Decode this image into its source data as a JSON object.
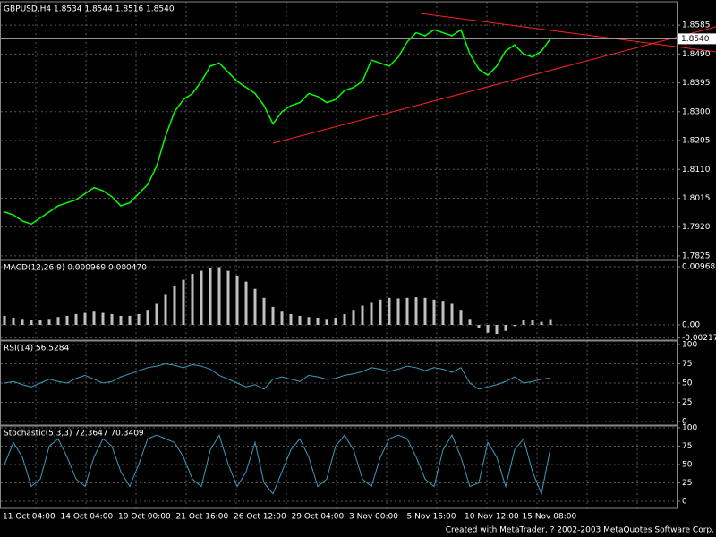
{
  "chart_data": [
    {
      "type": "line",
      "title": "GBPUSD,H4  1.8534 1.8544 1.8516 1.8540",
      "color": "#00ff00",
      "ylim": [
        1.7813,
        1.8662
      ],
      "yticks": [
        1.8585,
        {
          "value": 1.849,
          "label": "1.8490"
        },
        1.8395,
        {
          "value": 1.83,
          "label": "1.8300"
        },
        1.8205,
        {
          "value": 1.811,
          "label": "1.8110"
        },
        1.8015,
        {
          "value": 1.792,
          "label": "1.7920"
        },
        1.7825
      ],
      "last_price": {
        "value": 1.854,
        "label": "1.8540"
      },
      "values": [
        1.797,
        1.796,
        1.794,
        1.793,
        1.795,
        1.797,
        1.799,
        1.8,
        1.801,
        1.803,
        1.805,
        1.804,
        1.802,
        1.799,
        1.8,
        1.803,
        1.806,
        1.812,
        1.822,
        1.83,
        1.834,
        1.836,
        1.84,
        1.845,
        1.846,
        1.843,
        1.84,
        1.838,
        1.836,
        1.832,
        1.826,
        1.83,
        1.832,
        1.833,
        1.836,
        1.835,
        1.833,
        1.834,
        1.837,
        1.838,
        1.84,
        1.847,
        1.846,
        1.845,
        1.848,
        1.853,
        1.856,
        1.855,
        1.857,
        1.856,
        1.855,
        1.857,
        1.849,
        1.844,
        1.842,
        1.845,
        1.85,
        1.852,
        1.849,
        1.848,
        1.85,
        1.854
      ]
    },
    {
      "type": "bar",
      "title": "MACD(12,26,9)  0.000969  0.000470",
      "color": "#c0c0c0",
      "ylim": [
        -0.00253,
        0.01072
      ],
      "yticks": [
        0.00968,
        {
          "value": 0,
          "label": "0.00"
        },
        -0.00217
      ],
      "values": [
        0.0015,
        0.0012,
        0.001,
        0.0008,
        0.0008,
        0.001,
        0.0013,
        0.0015,
        0.0018,
        0.002,
        0.0022,
        0.002,
        0.0018,
        0.0015,
        0.0015,
        0.0018,
        0.0025,
        0.0035,
        0.005,
        0.0065,
        0.0075,
        0.0085,
        0.009,
        0.0095,
        0.0096,
        0.009,
        0.0082,
        0.0072,
        0.006,
        0.0045,
        0.003,
        0.0022,
        0.0018,
        0.0015,
        0.0013,
        0.0012,
        0.001,
        0.0012,
        0.0018,
        0.0025,
        0.0032,
        0.0038,
        0.0042,
        0.0045,
        0.0044,
        0.0045,
        0.0046,
        0.0045,
        0.0042,
        0.004,
        0.0035,
        0.0025,
        0.001,
        -0.0005,
        -0.0013,
        -0.0015,
        -0.001,
        -0.0002,
        0.0008,
        0.0008,
        0.0005,
        0.000969
      ]
    },
    {
      "type": "line",
      "title": "RSI(14)  56.5284",
      "color": "#3a9dbd",
      "ylim": [
        -4.65,
        104.65
      ],
      "yticks": [
        100,
        75,
        50,
        25,
        0
      ],
      "values": [
        50,
        52,
        48,
        45,
        50,
        55,
        52,
        50,
        56,
        60,
        55,
        50,
        52,
        58,
        62,
        66,
        70,
        72,
        75,
        73,
        70,
        74,
        72,
        68,
        60,
        55,
        50,
        45,
        48,
        42,
        55,
        58,
        55,
        52,
        60,
        58,
        55,
        56,
        60,
        62,
        65,
        70,
        68,
        65,
        68,
        72,
        70,
        66,
        70,
        68,
        64,
        70,
        50,
        42,
        45,
        48,
        52,
        58,
        50,
        52,
        55,
        56.5284
      ]
    },
    {
      "type": "line",
      "title": "Stochastic(5,3,3)  72.3647  70.3409",
      "color": "#3a9dbd",
      "ylim": [
        -9.8,
        102.4
      ],
      "yticks": [
        100,
        75,
        50,
        25,
        0
      ],
      "values": [
        50,
        80,
        60,
        20,
        30,
        75,
        85,
        60,
        30,
        20,
        60,
        85,
        75,
        40,
        20,
        50,
        85,
        90,
        85,
        80,
        60,
        30,
        20,
        70,
        90,
        50,
        20,
        40,
        80,
        25,
        10,
        40,
        70,
        85,
        60,
        20,
        30,
        75,
        90,
        70,
        30,
        20,
        60,
        85,
        90,
        85,
        60,
        30,
        20,
        70,
        90,
        60,
        20,
        25,
        80,
        60,
        20,
        70,
        85,
        40,
        10,
        72.3647
      ]
    }
  ],
  "xlabels": [
    "11 Oct 04:00",
    "14 Oct 04:00",
    "19 Oct 00:00",
    "21 Oct 16:00",
    "26 Oct 12:00",
    "29 Oct 04:00",
    "3 Nov 00:00",
    "5 Nov 16:00",
    "10 Nov 12:00",
    "15 Nov 08:00"
  ],
  "footer": "Created with MetaTrader, ? 2002-2003 MetaQuotes Software Corp."
}
